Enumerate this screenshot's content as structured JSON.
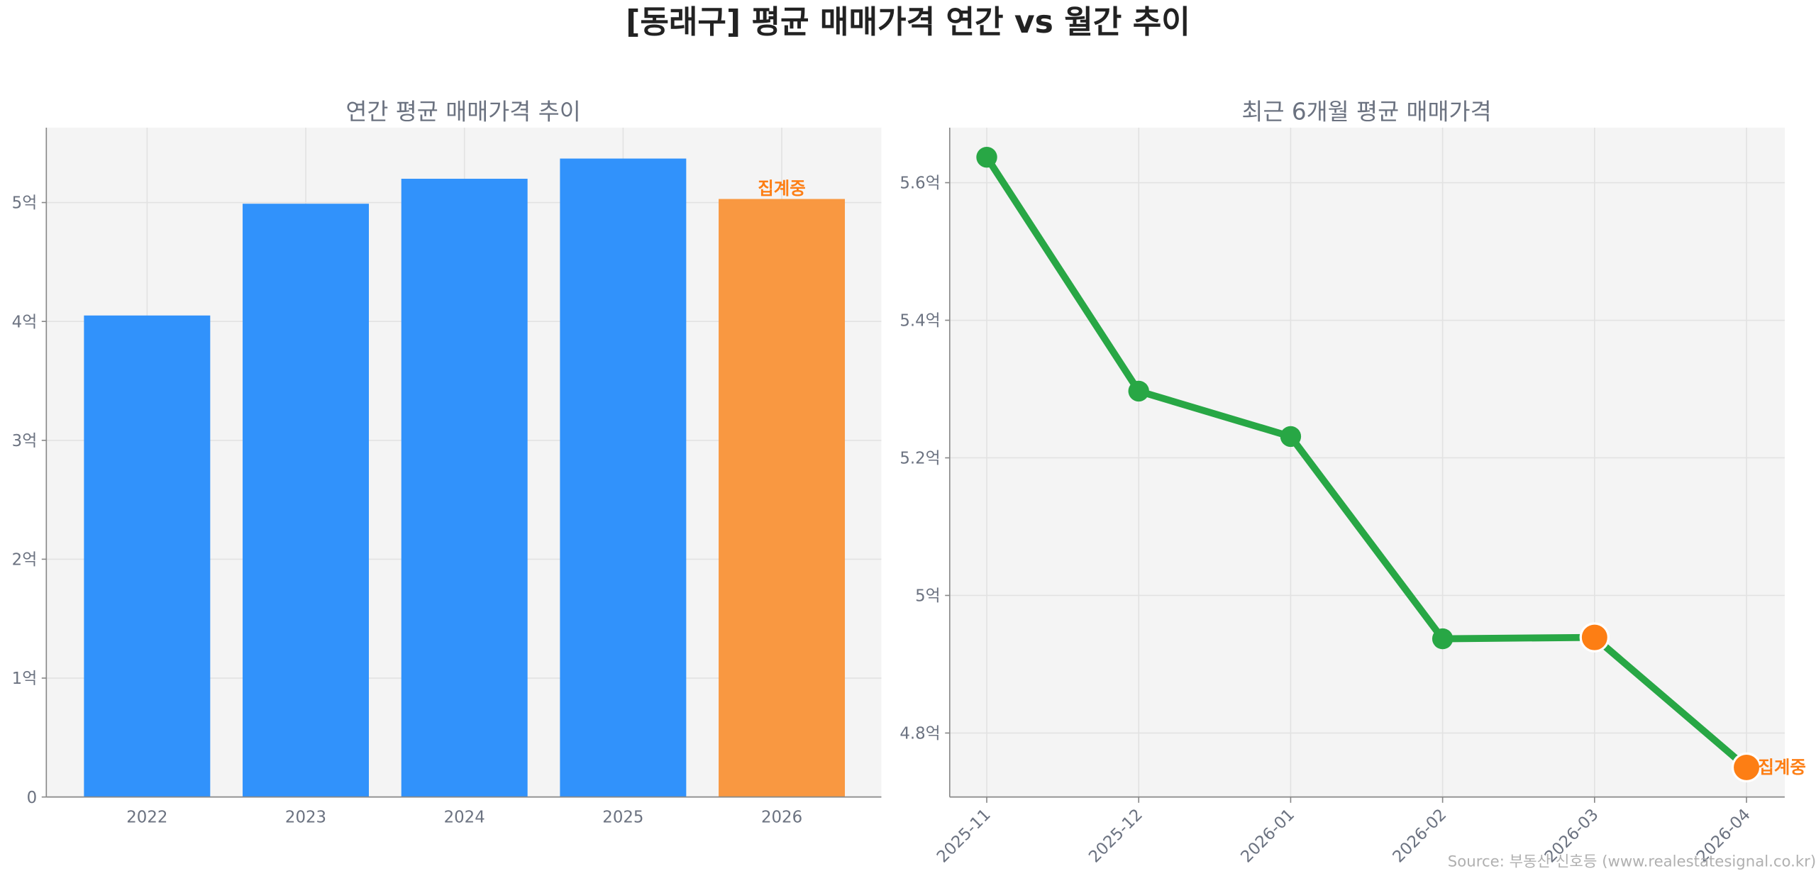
{
  "title": "[동래구] 평균 매매가격 연간 vs 월간 추이",
  "source": "Source: 부동산 신호등 (www.realestatesignal.co.kr)",
  "colors": {
    "bar": "#3192fb",
    "bar_partial": "#f99841",
    "line": "#28a745",
    "partial_marker": "#fd7e14",
    "annotation": "#fd7e14",
    "plot_bg": "#f4f4f4"
  },
  "chart_data": [
    {
      "type": "bar",
      "title": "연간 평균 매매가격 추이",
      "categories": [
        "2022",
        "2023",
        "2024",
        "2025",
        "2026"
      ],
      "values": [
        4.05,
        4.99,
        5.2,
        5.37,
        5.03
      ],
      "unit": "억",
      "ylim": [
        0,
        5.63
      ],
      "yticks": [
        0,
        1,
        2,
        3,
        4,
        5
      ],
      "ytick_labels": [
        "0",
        "1억",
        "2억",
        "3억",
        "4억",
        "5억"
      ],
      "partial_index": 4,
      "annotation": "집계중",
      "grid": true
    },
    {
      "type": "line",
      "title": "최근 6개월 평균 매매가격",
      "categories": [
        "2025-11",
        "2025-12",
        "2026-01",
        "2026-02",
        "2026-03",
        "2026-04"
      ],
      "values": [
        5.637,
        5.297,
        5.231,
        4.937,
        4.939,
        4.75
      ],
      "unit": "억",
      "ylim": [
        4.707,
        5.68
      ],
      "yticks": [
        4.8,
        5.0,
        5.2,
        5.4,
        5.6
      ],
      "ytick_labels": [
        "4.8억",
        "5억",
        "5.2억",
        "5.4억",
        "5.6억"
      ],
      "partial_indices": [
        4,
        5
      ],
      "annotation": "집계중",
      "grid": true
    }
  ]
}
